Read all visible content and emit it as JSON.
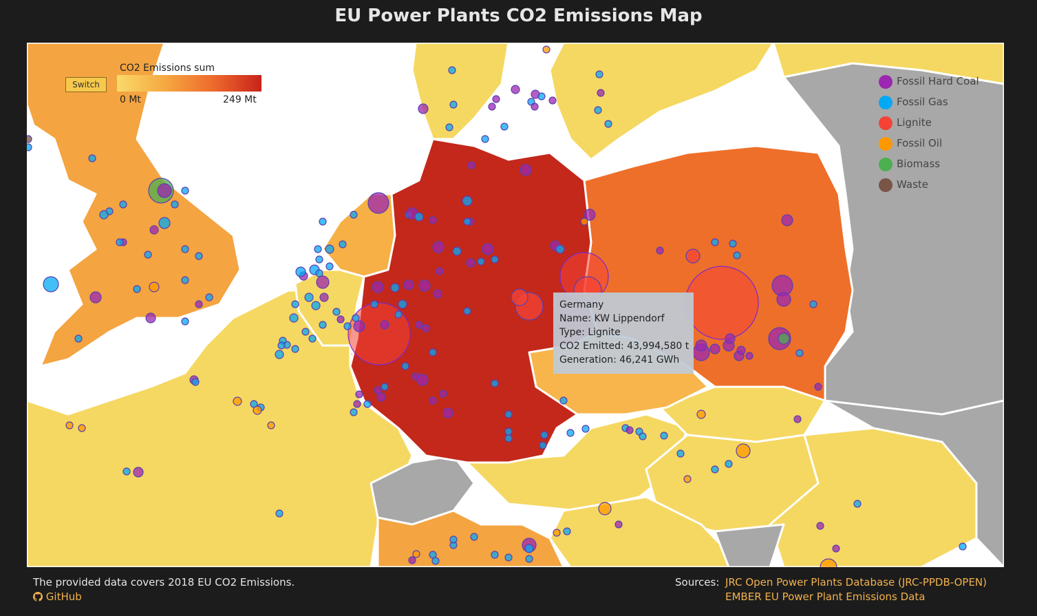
{
  "title": "EU Power Plants CO2 Emissions Map",
  "scale": {
    "switch_label": "Switch",
    "label": "CO2 Emissions sum",
    "min_label": "0 Mt",
    "max_label": "249 Mt",
    "colors": [
      "#f9da6a",
      "#f6a841",
      "#ee6a2c",
      "#c8231a"
    ]
  },
  "legend": [
    {
      "label": "Fossil Hard Coal",
      "color": "#9c27b0",
      "icon": "fossil-hard-coal"
    },
    {
      "label": "Fossil Gas",
      "color": "#03a9f4",
      "icon": "fossil-gas"
    },
    {
      "label": "Lignite",
      "color": "#f44336",
      "icon": "lignite"
    },
    {
      "label": "Fossil Oil",
      "color": "#ff9800",
      "icon": "fossil-oil"
    },
    {
      "label": "Biomass",
      "color": "#4caf50",
      "icon": "biomass"
    },
    {
      "label": "Waste",
      "color": "#795548",
      "icon": "waste"
    }
  ],
  "tooltip": {
    "country": "Germany",
    "name": "Name: KW Lippendorf",
    "type": "Type: Lignite",
    "co2": "CO2 Emitted: 43,994,580 t",
    "generation": "Generation: 46,241 GWh"
  },
  "footer": {
    "note": "The provided data covers 2018 EU CO2 Emissions.",
    "github": "GitHub",
    "sources_label": "Sources:",
    "sources": [
      "JRC Open Power Plants Database (JRC-PPDB-OPEN)",
      "EMBER EU Power Plant Emissions Data"
    ]
  },
  "country_colors": {
    "germany": "#c3281b",
    "poland": "#ee6f2a",
    "uk": "#f4a441",
    "italy": "#f4a441",
    "czechia": "#f7b54c",
    "netherlands": "#f6b046",
    "light": "#f5d862",
    "grey": "#a8a8a8"
  }
}
